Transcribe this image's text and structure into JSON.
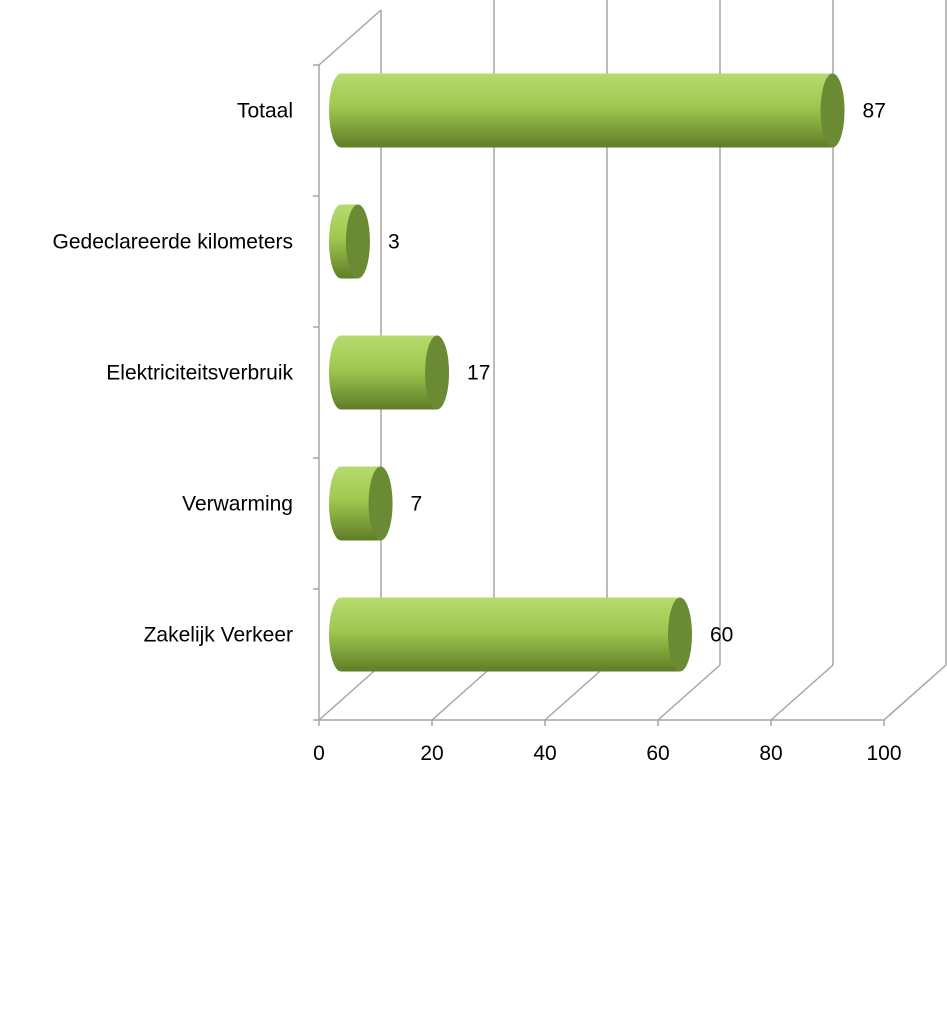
{
  "chart_data": {
    "type": "bar",
    "orientation": "horizontal",
    "style": "3d-cylinder",
    "categories": [
      "Zakelijk Verkeer",
      "Verwarming",
      "Elektriciteitsverbruik",
      "Gedeclareerde kilometers",
      "Totaal"
    ],
    "values": [
      60,
      7,
      17,
      3,
      87
    ],
    "data_labels": [
      "60",
      "7",
      "17",
      "3",
      "87"
    ],
    "xlim": [
      0,
      100
    ],
    "x_ticks": [
      0,
      20,
      40,
      60,
      80,
      100
    ],
    "x_tick_labels": [
      "0",
      "20",
      "40",
      "60",
      "80",
      "100"
    ],
    "title": "",
    "xlabel": "",
    "ylabel": "",
    "grid": true,
    "legend": "none",
    "colors": {
      "bar_light": "#b5db6e",
      "bar_mid": "#8db33e",
      "bar_dark": "#5f7d26",
      "cap": "#6b8a34",
      "grid": "#a6a6a6"
    }
  }
}
